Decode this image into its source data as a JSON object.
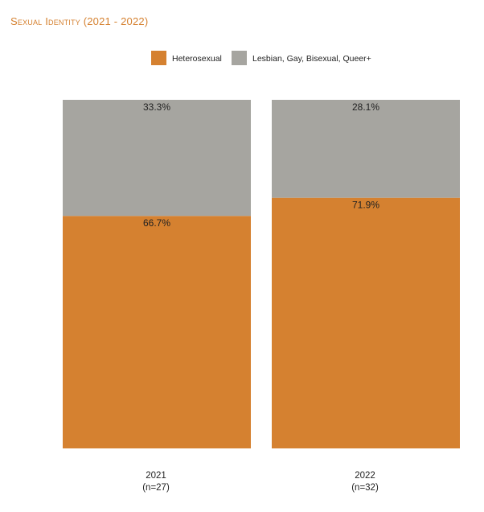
{
  "title": "Sexual Identity (2021 - 2022)",
  "colors": {
    "title": "#d58130",
    "text": "#222222"
  },
  "chart_data": {
    "type": "bar",
    "stacked": true,
    "normalized": true,
    "categories": [
      "2021",
      "2022"
    ],
    "category_notes": [
      "(n=27)",
      "(n=32)"
    ],
    "series": [
      {
        "name": "Heterosexual",
        "color": "#d58130",
        "values": [
          66.7,
          71.9
        ],
        "labels": [
          "66.7%",
          "71.9%"
        ]
      },
      {
        "name": "Lesbian, Gay, Bisexual, Queer+",
        "color": "#a6a5a0",
        "values": [
          33.3,
          28.1
        ],
        "labels": [
          "33.3%",
          "28.1%"
        ]
      }
    ],
    "ylim": [
      0,
      100
    ],
    "grid": false,
    "legend_position": "top-center",
    "xlabel": "",
    "ylabel": ""
  }
}
